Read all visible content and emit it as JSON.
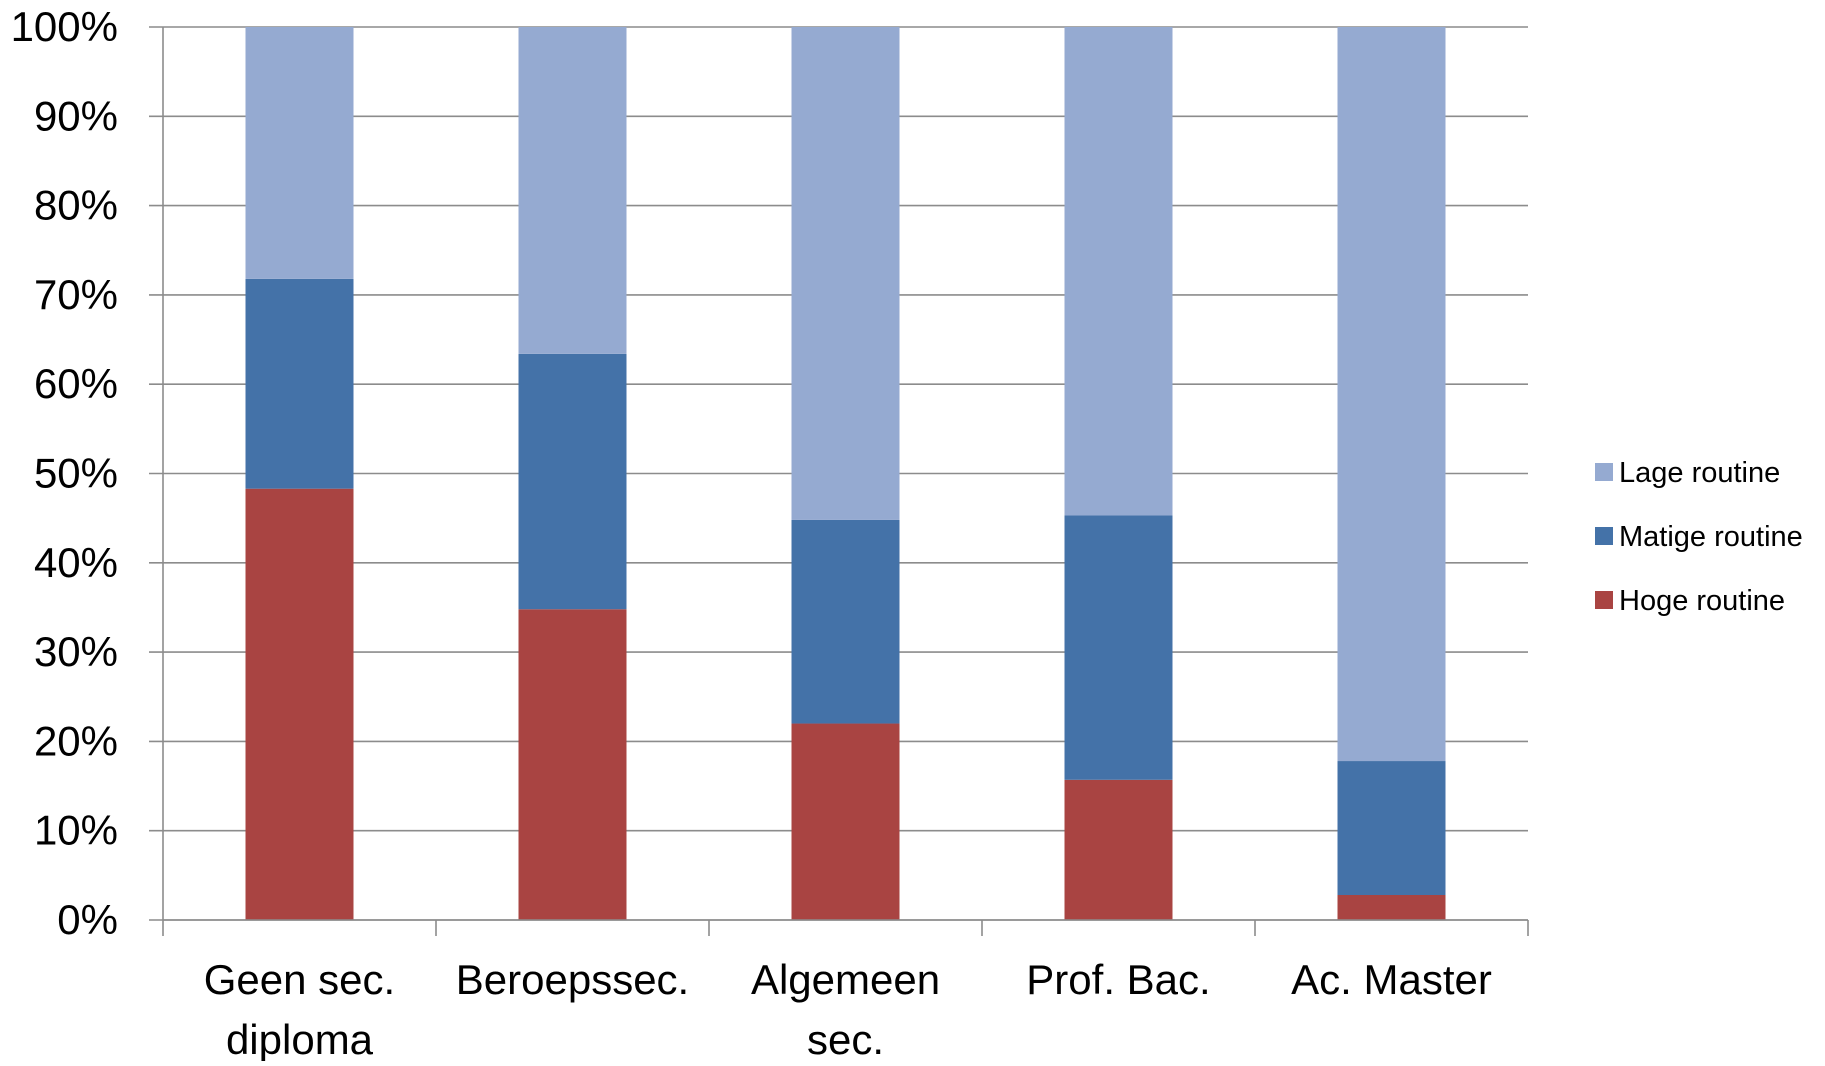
{
  "chart_data": {
    "type": "bar",
    "stacked": true,
    "percent_stacked": true,
    "categories": [
      [
        "Geen sec.",
        "diploma"
      ],
      [
        "Beroepssec."
      ],
      [
        "Algemeen",
        "sec."
      ],
      [
        "Prof. Bac."
      ],
      [
        "Ac. Master"
      ]
    ],
    "series": [
      {
        "name": "Hoge routine",
        "color": "#a94442",
        "values": [
          48.3,
          34.8,
          22.0,
          15.7,
          2.8
        ]
      },
      {
        "name": "Matige routine",
        "color": "#4472a8",
        "values": [
          23.5,
          28.6,
          22.8,
          29.6,
          15.0
        ]
      },
      {
        "name": "Lage routine",
        "color": "#95aad1",
        "values": [
          28.2,
          36.6,
          55.2,
          54.7,
          82.2
        ]
      }
    ],
    "y_ticks": [
      "0%",
      "10%",
      "20%",
      "30%",
      "40%",
      "50%",
      "60%",
      "70%",
      "80%",
      "90%",
      "100%"
    ],
    "ylim": [
      0,
      100
    ],
    "grid": true,
    "legend_position": "right",
    "legend_order": [
      "Lage routine",
      "Matige routine",
      "Hoge routine"
    ],
    "gridline_color": "#8c8c8c"
  }
}
